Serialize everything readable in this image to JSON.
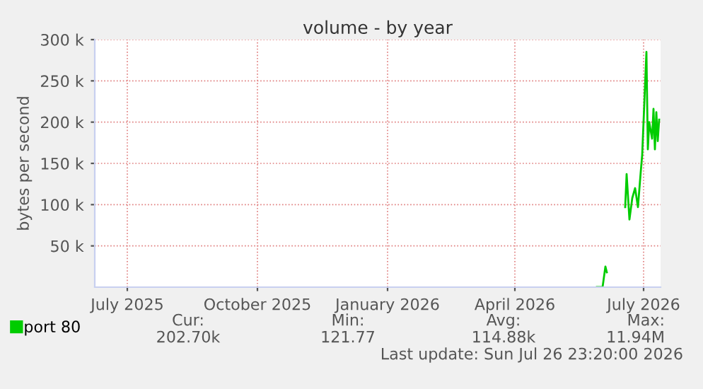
{
  "chart_data": {
    "type": "line",
    "title": "volume - by year",
    "ylabel": "bytes per second",
    "x": [
      "2026-06-12",
      "2026-06-16",
      "2026-06-18",
      "2026-06-19",
      "2026-06-25",
      "2026-07-02",
      "2026-07-03",
      "2026-07-05",
      "2026-07-07",
      "2026-07-09",
      "2026-07-11",
      "2026-07-13",
      "2026-07-14",
      "2026-07-17",
      "2026-07-18",
      "2026-07-19",
      "2026-07-21",
      "2026-07-22",
      "2026-07-23",
      "2026-07-24",
      "2026-07-25",
      "2026-07-26"
    ],
    "series": [
      {
        "name": "port 80",
        "color": "#00cc00",
        "values": [
          0,
          0,
          25000,
          18000,
          null,
          97000,
          137000,
          82000,
          108000,
          120000,
          97000,
          140000,
          160000,
          285000,
          167000,
          200000,
          180000,
          216000,
          167000,
          212000,
          177000,
          203000
        ]
      }
    ],
    "xlim": [
      "2025-06-22",
      "2026-07-27"
    ],
    "xticks": [
      {
        "value": "2025-07-15",
        "label": "July 2025"
      },
      {
        "value": "2025-10-15",
        "label": "October 2025"
      },
      {
        "value": "2026-01-15",
        "label": "January 2026"
      },
      {
        "value": "2026-04-15",
        "label": "April 2026"
      },
      {
        "value": "2026-07-15",
        "label": "July 2026"
      }
    ],
    "ylim": [
      0,
      300000
    ],
    "yticks": [
      {
        "value": 50000,
        "label": "50 k"
      },
      {
        "value": 100000,
        "label": "100 k"
      },
      {
        "value": 150000,
        "label": "150 k"
      },
      {
        "value": 200000,
        "label": "200 k"
      },
      {
        "value": 250000,
        "label": "250 k"
      },
      {
        "value": 300000,
        "label": "300 k"
      }
    ],
    "grid": true,
    "legend": "bottom left",
    "marker": "none",
    "line_style": "solid",
    "annotations": [
      "Cur:",
      "Min:",
      "Avg:",
      "Max:",
      "202.70k",
      "121.77",
      "114.88k",
      "11.94M",
      "Last update: Sun Jul 26 23:20:00 2026"
    ]
  }
}
